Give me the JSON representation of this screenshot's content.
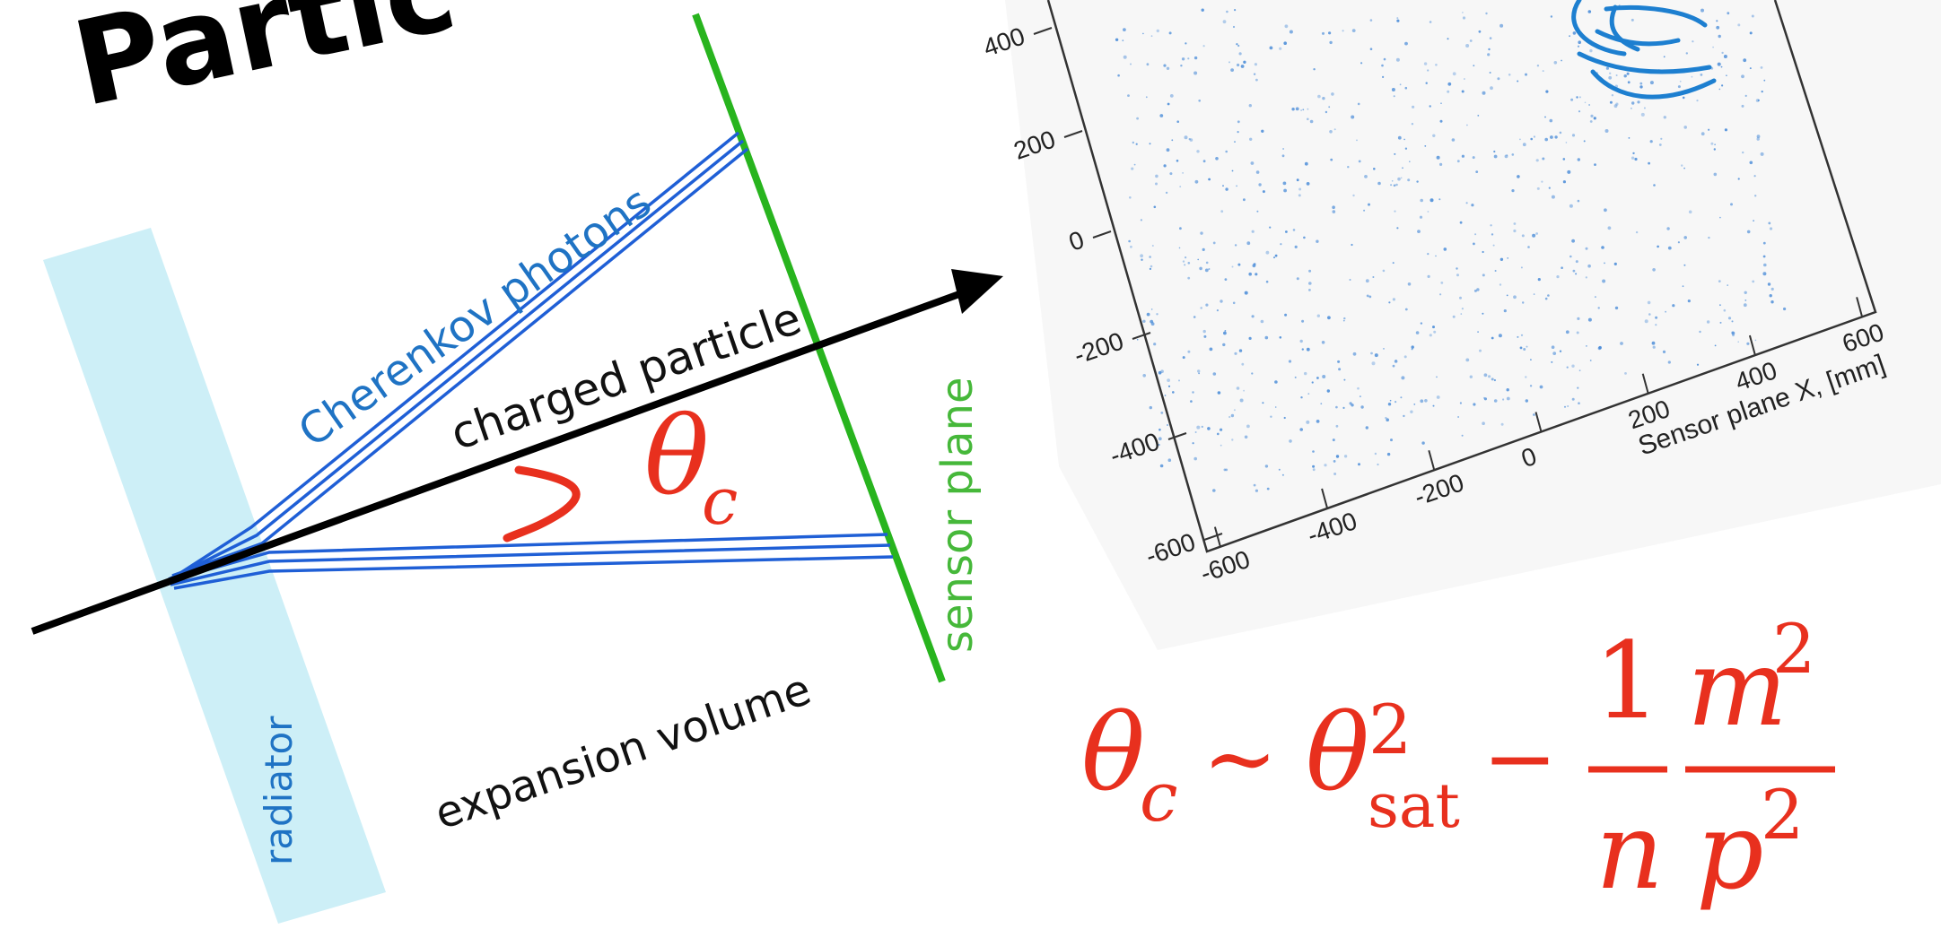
{
  "slide_title_partial": "Partic",
  "diagram": {
    "label_photons": "Cherenkov photons",
    "label_particle": "charged particle",
    "label_sensor": "sensor plane",
    "label_radiator": "radiator",
    "label_expansion": "expansion volume",
    "angle_symbol": "θ",
    "angle_subscript": "c"
  },
  "plot": {
    "x_axis_title": "Sensor plane X, [mm]",
    "x_ticks": [
      "-600",
      "-400",
      "-200",
      "0",
      "200",
      "400",
      "600"
    ],
    "y_ticks": [
      "400",
      "200",
      "0",
      "-200",
      "-400",
      "-600"
    ]
  },
  "formula": {
    "theta": "θ",
    "sub_c": "c",
    "sim": "∼",
    "sup_2": "2",
    "sub_sat": "sat",
    "minus": "−",
    "num_1": "1",
    "den_n": "n",
    "num_m": "m",
    "den_p": "p"
  },
  "colors": {
    "accent_red": "#e8301e",
    "photon_blue": "#1f5fd6",
    "label_blue": "#1f73c4",
    "sensor_green": "#28b41e",
    "radiator_cyan": "#cdeff7",
    "dot_blue": "#3f85d6"
  }
}
